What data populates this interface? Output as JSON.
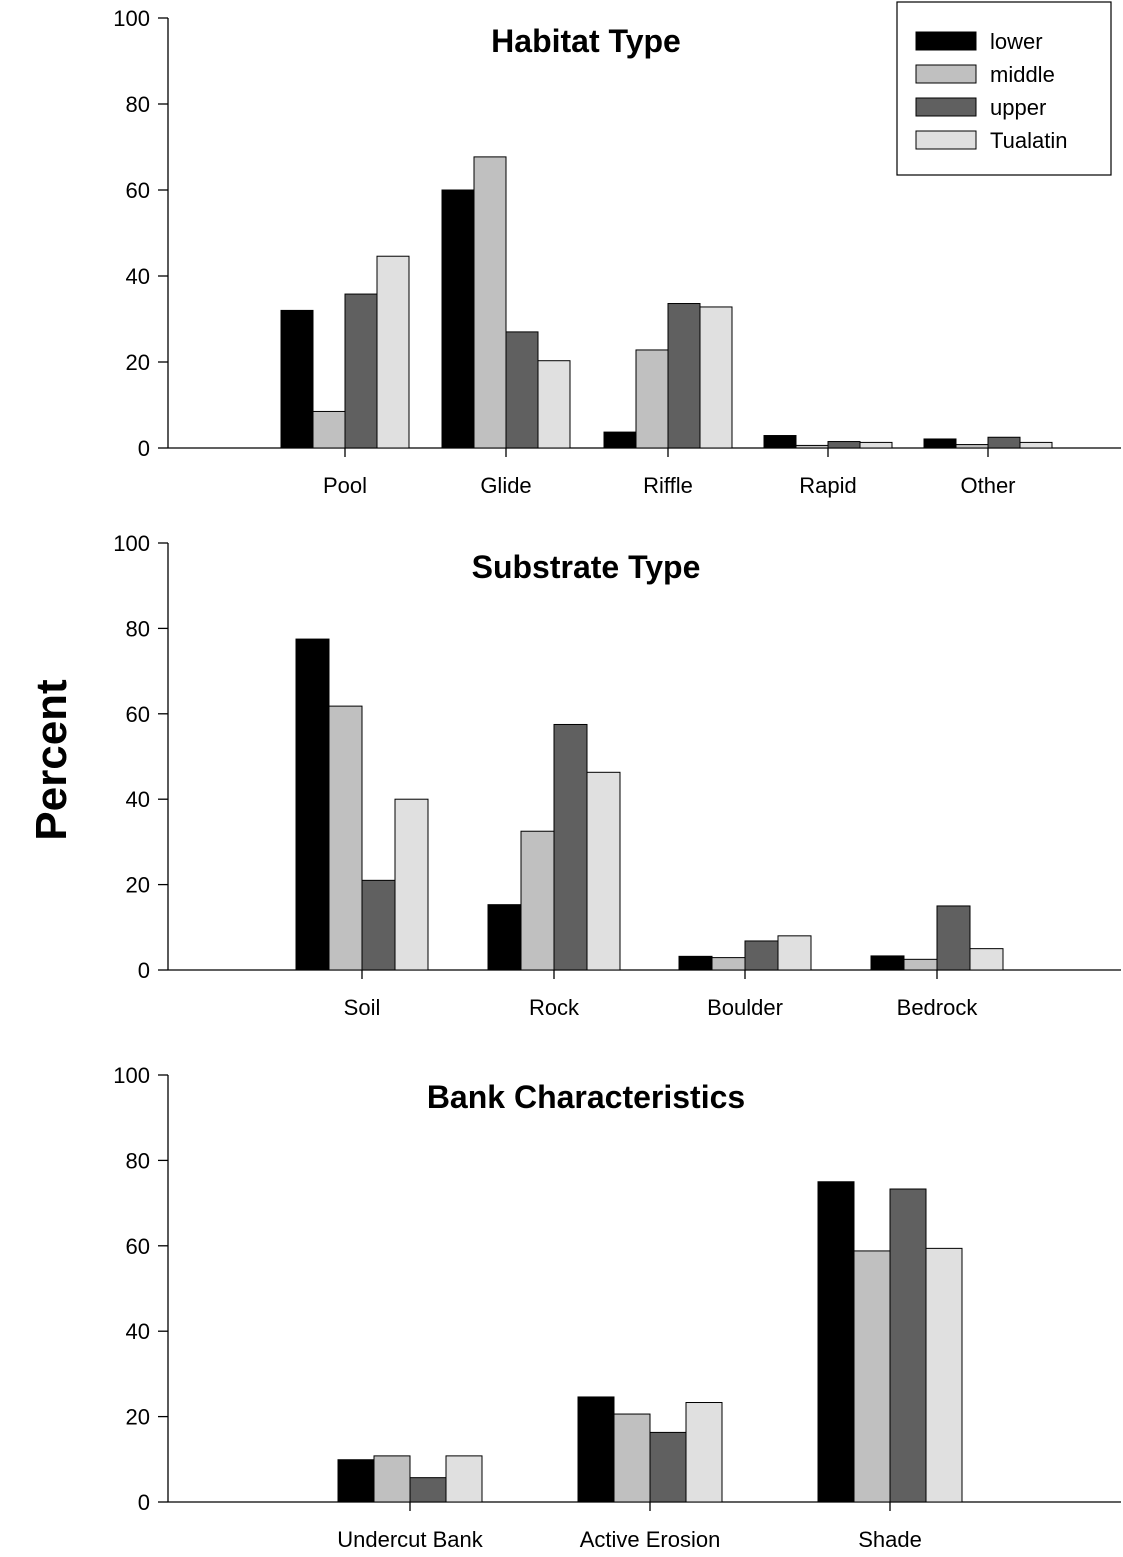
{
  "ylabel": "Percent",
  "legend": {
    "placement": "top-right",
    "entries": [
      {
        "name": "lower",
        "color": "#000000"
      },
      {
        "name": "middle",
        "color": "#c0c0c0"
      },
      {
        "name": "upper",
        "color": "#606060"
      },
      {
        "name": "Tualatin",
        "color": "#e0e0e0"
      }
    ]
  },
  "chart_data": [
    {
      "type": "bar",
      "title": "Habitat Type",
      "categories": [
        "Pool",
        "Glide",
        "Riffle",
        "Rapid",
        "Other"
      ],
      "ylim": [
        0,
        100
      ],
      "yticks": [
        0,
        20,
        40,
        60,
        80,
        100
      ],
      "grid": false,
      "series": [
        {
          "name": "lower",
          "values": [
            32,
            60,
            3.7,
            2.9,
            2.1
          ]
        },
        {
          "name": "middle",
          "values": [
            8.5,
            67.7,
            22.8,
            0.6,
            0.8
          ]
        },
        {
          "name": "upper",
          "values": [
            35.8,
            27,
            33.6,
            1.5,
            2.5
          ]
        },
        {
          "name": "Tualatin",
          "values": [
            44.6,
            20.3,
            32.8,
            1.3,
            1.3
          ]
        }
      ]
    },
    {
      "type": "bar",
      "title": "Substrate Type",
      "categories": [
        "Soil",
        "Rock",
        "Boulder",
        "Bedrock"
      ],
      "ylim": [
        0,
        100
      ],
      "yticks": [
        0,
        20,
        40,
        60,
        80,
        100
      ],
      "grid": false,
      "series": [
        {
          "name": "lower",
          "values": [
            77.5,
            15.3,
            3.2,
            3.3
          ]
        },
        {
          "name": "middle",
          "values": [
            61.8,
            32.5,
            2.9,
            2.5
          ]
        },
        {
          "name": "upper",
          "values": [
            21,
            57.5,
            6.8,
            15
          ]
        },
        {
          "name": "Tualatin",
          "values": [
            40,
            46.3,
            8,
            5
          ]
        }
      ]
    },
    {
      "type": "bar",
      "title": "Bank Characteristics",
      "categories": [
        "Undercut Bank",
        "Active Erosion",
        "Shade"
      ],
      "ylim": [
        0,
        100
      ],
      "yticks": [
        0,
        20,
        40,
        60,
        80,
        100
      ],
      "grid": false,
      "series": [
        {
          "name": "lower",
          "values": [
            9.9,
            24.6,
            75
          ]
        },
        {
          "name": "middle",
          "values": [
            10.8,
            20.6,
            58.8
          ]
        },
        {
          "name": "upper",
          "values": [
            5.7,
            16.3,
            73.3
          ]
        },
        {
          "name": "Tualatin",
          "values": [
            10.8,
            23.3,
            59.4
          ]
        }
      ]
    }
  ]
}
